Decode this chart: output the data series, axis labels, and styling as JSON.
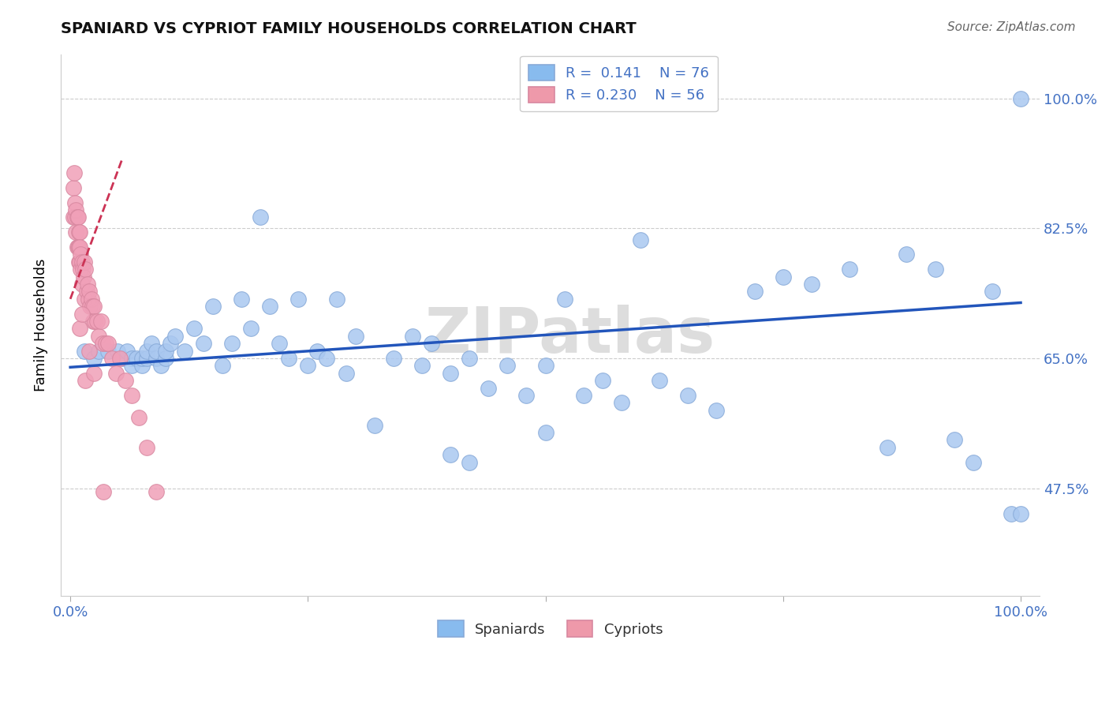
{
  "title": "SPANIARD VS CYPRIOT FAMILY HOUSEHOLDS CORRELATION CHART",
  "source": "Source: ZipAtlas.com",
  "ylabel": "Family Households",
  "watermark": "ZIPatlas",
  "xlim": [
    -0.01,
    1.02
  ],
  "ylim": [
    0.33,
    1.06
  ],
  "xticks": [
    0.0,
    0.25,
    0.5,
    0.75,
    1.0
  ],
  "xtick_labels": [
    "0.0%",
    "",
    "",
    "",
    "100.0%"
  ],
  "ytick_labels": [
    "47.5%",
    "65.0%",
    "82.5%",
    "100.0%"
  ],
  "yticks": [
    0.475,
    0.65,
    0.825,
    1.0
  ],
  "spaniard_R": 0.141,
  "spaniard_N": 76,
  "cypriot_R": 0.23,
  "cypriot_N": 56,
  "spaniard_color": "#aac8f0",
  "cypriot_color": "#f0a0b8",
  "trend_blue": "#2255bb",
  "trend_pink": "#cc3355",
  "legend_color_blue": "#88bbee",
  "legend_color_pink": "#ee99aa",
  "spaniard_x": [
    0.015,
    0.025,
    0.03,
    0.04,
    0.05,
    0.055,
    0.06,
    0.065,
    0.065,
    0.07,
    0.075,
    0.075,
    0.08,
    0.08,
    0.085,
    0.09,
    0.09,
    0.095,
    0.1,
    0.1,
    0.105,
    0.11,
    0.12,
    0.13,
    0.14,
    0.15,
    0.16,
    0.17,
    0.18,
    0.19,
    0.2,
    0.21,
    0.22,
    0.23,
    0.24,
    0.25,
    0.26,
    0.27,
    0.28,
    0.29,
    0.3,
    0.32,
    0.34,
    0.36,
    0.37,
    0.38,
    0.4,
    0.42,
    0.44,
    0.46,
    0.48,
    0.5,
    0.52,
    0.54,
    0.56,
    0.58,
    0.6,
    0.62,
    0.65,
    0.68,
    0.72,
    0.75,
    0.78,
    0.82,
    0.86,
    0.88,
    0.91,
    0.93,
    0.95,
    0.97,
    0.99,
    1.0,
    1.0,
    0.4,
    0.42,
    0.5
  ],
  "spaniard_y": [
    0.66,
    0.65,
    0.66,
    0.66,
    0.66,
    0.65,
    0.66,
    0.65,
    0.64,
    0.65,
    0.64,
    0.65,
    0.65,
    0.66,
    0.67,
    0.65,
    0.66,
    0.64,
    0.65,
    0.66,
    0.67,
    0.68,
    0.66,
    0.69,
    0.67,
    0.72,
    0.64,
    0.67,
    0.73,
    0.69,
    0.84,
    0.72,
    0.67,
    0.65,
    0.73,
    0.64,
    0.66,
    0.65,
    0.73,
    0.63,
    0.68,
    0.56,
    0.65,
    0.68,
    0.64,
    0.67,
    0.63,
    0.65,
    0.61,
    0.64,
    0.6,
    0.64,
    0.73,
    0.6,
    0.62,
    0.59,
    0.81,
    0.62,
    0.6,
    0.58,
    0.74,
    0.76,
    0.75,
    0.77,
    0.53,
    0.79,
    0.77,
    0.54,
    0.51,
    0.74,
    0.44,
    0.44,
    1.0,
    0.52,
    0.51,
    0.55
  ],
  "cypriot_x": [
    0.003,
    0.003,
    0.004,
    0.005,
    0.005,
    0.006,
    0.006,
    0.007,
    0.007,
    0.008,
    0.008,
    0.009,
    0.009,
    0.009,
    0.01,
    0.01,
    0.01,
    0.011,
    0.011,
    0.012,
    0.012,
    0.013,
    0.014,
    0.015,
    0.015,
    0.016,
    0.017,
    0.018,
    0.019,
    0.02,
    0.021,
    0.022,
    0.023,
    0.024,
    0.025,
    0.026,
    0.028,
    0.03,
    0.032,
    0.034,
    0.037,
    0.04,
    0.044,
    0.048,
    0.052,
    0.058,
    0.065,
    0.072,
    0.08,
    0.09,
    0.01,
    0.012,
    0.016,
    0.02,
    0.025,
    0.035
  ],
  "cypriot_y": [
    0.88,
    0.84,
    0.9,
    0.86,
    0.84,
    0.85,
    0.82,
    0.84,
    0.8,
    0.84,
    0.8,
    0.82,
    0.8,
    0.78,
    0.82,
    0.8,
    0.78,
    0.79,
    0.77,
    0.78,
    0.75,
    0.77,
    0.76,
    0.78,
    0.73,
    0.77,
    0.74,
    0.75,
    0.73,
    0.74,
    0.72,
    0.73,
    0.72,
    0.7,
    0.72,
    0.7,
    0.7,
    0.68,
    0.7,
    0.67,
    0.67,
    0.67,
    0.65,
    0.63,
    0.65,
    0.62,
    0.6,
    0.57,
    0.53,
    0.47,
    0.69,
    0.71,
    0.62,
    0.66,
    0.63,
    0.47
  ],
  "pink_trend_x0": 0.0,
  "pink_trend_y0": 0.73,
  "pink_trend_x1": 0.055,
  "pink_trend_y1": 0.92,
  "blue_trend_x0": 0.0,
  "blue_trend_y0": 0.638,
  "blue_trend_x1": 1.0,
  "blue_trend_y1": 0.725
}
